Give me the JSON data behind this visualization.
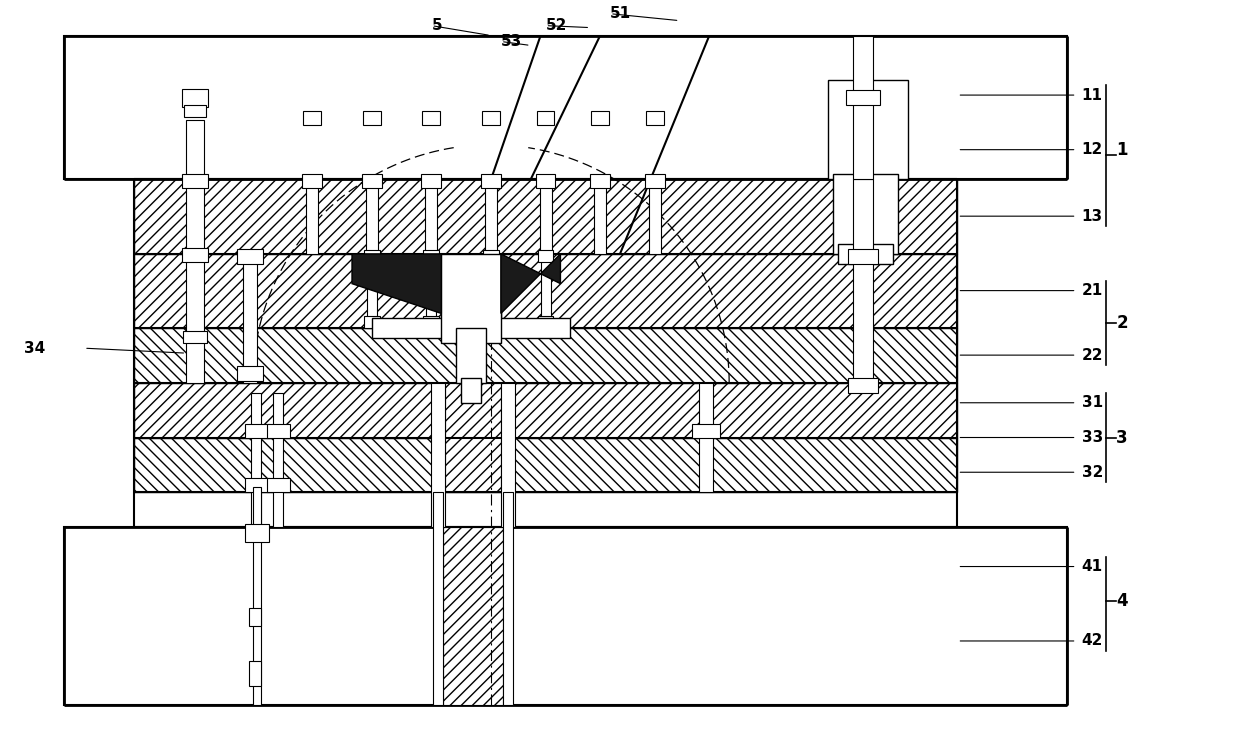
{
  "bg_color": "#ffffff",
  "lc": "#000000",
  "fig_width": 12.39,
  "fig_height": 7.43,
  "dpi": 100,
  "lw": 1.0,
  "label_fs": 11
}
